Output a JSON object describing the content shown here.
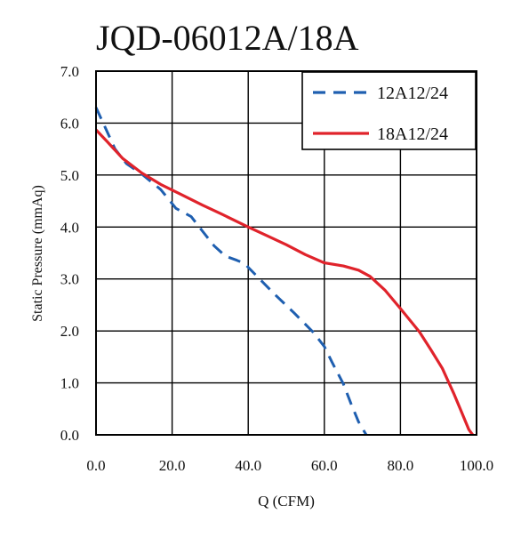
{
  "chart_data": {
    "type": "line",
    "title": "JQD-06012A/18A",
    "xlabel": "Q (CFM)",
    "ylabel": "Static Pressure (mmAq)",
    "xlim": [
      0,
      100
    ],
    "ylim": [
      0,
      7
    ],
    "x_ticks": [
      "0.0",
      "20.0",
      "40.0",
      "60.0",
      "80.0",
      "100.0"
    ],
    "y_ticks": [
      "0.0",
      "1.0",
      "2.0",
      "3.0",
      "4.0",
      "5.0",
      "6.0",
      "7.0"
    ],
    "grid": true,
    "legend_position": "top-right",
    "series": [
      {
        "name": "12A12/24",
        "color": "#1f5fb0",
        "style": "dashed",
        "points": [
          [
            0,
            6.3
          ],
          [
            2,
            5.98
          ],
          [
            5,
            5.5
          ],
          [
            8,
            5.22
          ],
          [
            12,
            5.02
          ],
          [
            17,
            4.72
          ],
          [
            21,
            4.36
          ],
          [
            25,
            4.2
          ],
          [
            28,
            3.92
          ],
          [
            31,
            3.64
          ],
          [
            34,
            3.44
          ],
          [
            37,
            3.36
          ],
          [
            39,
            3.3
          ],
          [
            43,
            3.0
          ],
          [
            47,
            2.7
          ],
          [
            52,
            2.35
          ],
          [
            57,
            1.98
          ],
          [
            60,
            1.7
          ],
          [
            62,
            1.4
          ],
          [
            65,
            0.98
          ],
          [
            67,
            0.6
          ],
          [
            69,
            0.25
          ],
          [
            71,
            0.0
          ]
        ]
      },
      {
        "name": "18A12/24",
        "color": "#e0232b",
        "style": "solid",
        "points": [
          [
            0,
            5.87
          ],
          [
            3,
            5.64
          ],
          [
            7,
            5.32
          ],
          [
            12,
            5.04
          ],
          [
            17,
            4.82
          ],
          [
            22,
            4.64
          ],
          [
            28,
            4.42
          ],
          [
            33,
            4.25
          ],
          [
            40,
            4.0
          ],
          [
            45,
            3.83
          ],
          [
            50,
            3.66
          ],
          [
            55,
            3.47
          ],
          [
            60,
            3.31
          ],
          [
            65,
            3.25
          ],
          [
            69,
            3.17
          ],
          [
            72,
            3.05
          ],
          [
            76,
            2.78
          ],
          [
            80,
            2.43
          ],
          [
            85,
            1.98
          ],
          [
            88,
            1.64
          ],
          [
            91,
            1.28
          ],
          [
            94,
            0.8
          ],
          [
            96,
            0.45
          ],
          [
            98,
            0.1
          ],
          [
            99,
            0.0
          ]
        ]
      }
    ]
  }
}
